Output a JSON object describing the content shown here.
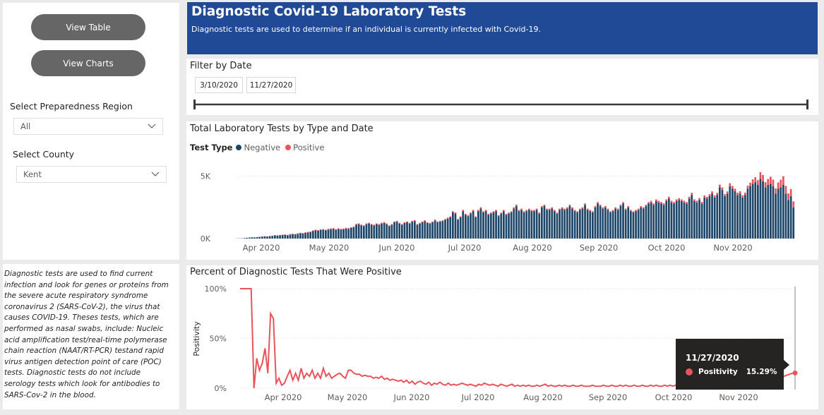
{
  "sidebar": {
    "view_table_label": "View Table",
    "view_charts_label": "View Charts",
    "region_label": "Select Preparedness Region",
    "region_value": "All",
    "county_label": "Select County",
    "county_value": "Kent",
    "description": "Diagnostic tests are used to find current infection and look for genes or proteins from the severe acute respiratory syndrome coronavirus 2 (SARS-CoV-2), the virus that causes COVID-19. Theses tests, which are performed as nasal swabs, include: Nucleic acid amplification test/real-time polymerase chain reaction (NAAT/RT-PCR) testand rapid virus antigen detection point of care (POC) tests.  Diagnostic tests do not include serology tests which look for antibodies to SARS-Cov-2 in the blood."
  },
  "header": {
    "title": "Diagnostic Covid-19 Laboratory Tests",
    "subtitle": "Diagnostic tests are used to determine if an individual is currently infected with Covid-19."
  },
  "filter": {
    "title": "Filter by Date",
    "start_date": "3/10/2020",
    "end_date": "11/27/2020",
    "slider_start": 0,
    "slider_end": 1
  },
  "colors": {
    "negative": "#1c4568",
    "positive": "#e8545c",
    "header_bg": "#214a96",
    "button_bg": "#666666"
  },
  "tooltip": {
    "date": "11/27/2020",
    "label": "Positivity",
    "value": "15.29%"
  },
  "chart_data": [
    {
      "type": "bar",
      "stacked": true,
      "title": "Total Laboratory Tests by Type and Date",
      "legend_title": "Test Type",
      "legend_position": "top-left",
      "x_range": [
        "2020-03-10",
        "2020-11-27"
      ],
      "x_ticks": [
        "Apr 2020",
        "May 2020",
        "Jun 2020",
        "Jul 2020",
        "Aug 2020",
        "Sep 2020",
        "Oct 2020",
        "Nov 2020"
      ],
      "y_ticks": [
        "0K",
        "5K"
      ],
      "ylim": [
        0,
        6000
      ],
      "series": [
        {
          "name": "Negative",
          "values": [
            10,
            15,
            20,
            40,
            60,
            80,
            100,
            90,
            110,
            130,
            150,
            170,
            160,
            190,
            210,
            250,
            230,
            260,
            280,
            300,
            260,
            320,
            350,
            330,
            380,
            420,
            400,
            450,
            480,
            520,
            600,
            650,
            620,
            680,
            700,
            650,
            720,
            750,
            780,
            700,
            760,
            720,
            740,
            800,
            780,
            850,
            900,
            1100,
            1150,
            1050,
            1000,
            1150,
            1200,
            1100,
            1050,
            1150,
            1100,
            1200,
            1250,
            1150,
            1000,
            1100,
            1300,
            1350,
            1200,
            1100,
            1250,
            1300,
            1200,
            1350,
            1400,
            1100,
            1200,
            1300,
            1400,
            1250,
            1200,
            1300,
            1450,
            1300,
            1350,
            1400,
            1500,
            1600,
            1700,
            2100,
            2000,
            1500,
            1700,
            2200,
            1900,
            1800,
            2000,
            2200,
            1700,
            2200,
            2400,
            2100,
            2200,
            1900,
            2000,
            2100,
            2200,
            1800,
            2000,
            2200,
            1900,
            2000,
            2100,
            2400,
            2600,
            2200,
            2300,
            2100,
            2200,
            2300,
            2200,
            2200,
            2300,
            2000,
            2500,
            2600,
            2300,
            2300,
            2400,
            2200,
            2000,
            2300,
            2400,
            2300,
            2400,
            2600,
            2400,
            2200,
            2100,
            2300,
            2400,
            2700,
            2300,
            2200,
            2100,
            2500,
            2800,
            2600,
            2400,
            2500,
            2300,
            2100,
            2200,
            2400,
            2300,
            2600,
            2800,
            2300,
            2500,
            2200,
            2100,
            2200,
            2300,
            2500,
            2400,
            2600,
            2800,
            2900,
            2700,
            3000,
            2900,
            2800,
            2700,
            3000,
            3200,
            2900,
            2800,
            3000,
            3100,
            3000,
            2900,
            2800,
            3200,
            3500,
            3000,
            2900,
            3100,
            2800,
            3300,
            3200,
            3400,
            3600,
            3300,
            3500,
            4100,
            3900,
            3400,
            3600,
            4200,
            4000,
            3800,
            3500,
            3600,
            3300,
            3500,
            4000,
            4200,
            4400,
            4500,
            4300,
            4800,
            4600,
            4100,
            4300,
            4400,
            4200,
            3600,
            4000,
            4100,
            4300,
            3600,
            3100,
            3400,
            2500
          ]
        },
        {
          "name": "Positive",
          "values": [
            2,
            3,
            4,
            6,
            8,
            10,
            12,
            10,
            12,
            15,
            16,
            18,
            16,
            20,
            22,
            30,
            26,
            30,
            32,
            35,
            30,
            36,
            40,
            38,
            42,
            45,
            44,
            48,
            50,
            52,
            55,
            60,
            58,
            60,
            62,
            58,
            60,
            62,
            64,
            60,
            60,
            58,
            58,
            60,
            58,
            60,
            62,
            70,
            72,
            66,
            62,
            70,
            72,
            66,
            62,
            68,
            64,
            70,
            72,
            66,
            58,
            62,
            72,
            74,
            66,
            60,
            68,
            70,
            64,
            72,
            74,
            58,
            62,
            66,
            70,
            62,
            60,
            64,
            70,
            64,
            66,
            68,
            72,
            76,
            80,
            96,
            92,
            70,
            78,
            100,
            86,
            82,
            90,
            98,
            76,
            98,
            106,
            92,
            96,
            84,
            88,
            92,
            96,
            80,
            88,
            96,
            84,
            88,
            92,
            106,
            114,
            96,
            100,
            92,
            96,
            100,
            96,
            96,
            100,
            88,
            110,
            114,
            100,
            100,
            106,
            96,
            88,
            100,
            106,
            100,
            106,
            114,
            106,
            96,
            92,
            100,
            106,
            118,
            100,
            96,
            92,
            110,
            122,
            114,
            106,
            110,
            100,
            92,
            96,
            106,
            100,
            114,
            122,
            100,
            110,
            96,
            92,
            96,
            100,
            110,
            106,
            114,
            122,
            130,
            120,
            140,
            135,
            130,
            125,
            140,
            150,
            135,
            130,
            140,
            145,
            140,
            135,
            130,
            150,
            170,
            145,
            140,
            150,
            135,
            160,
            155,
            165,
            180,
            160,
            170,
            220,
            200,
            170,
            180,
            240,
            220,
            200,
            180,
            190,
            170,
            180,
            240,
            280,
            350,
            420,
            380,
            520,
            500,
            420,
            480,
            560,
            520,
            420,
            500,
            620,
            700,
            620,
            520,
            560,
            480
          ]
        }
      ]
    },
    {
      "type": "line",
      "title": "Percent of Diagnostic Tests That Were Positive",
      "ylabel": "Positivity",
      "x_range": [
        "2020-03-10",
        "2020-11-27"
      ],
      "x_ticks": [
        "Apr 2020",
        "May 2020",
        "Jun 2020",
        "Jul 2020",
        "Aug 2020",
        "Sep 2020",
        "Oct 2020",
        "Nov 2020"
      ],
      "y_ticks": [
        "0%",
        "50%",
        "100%"
      ],
      "ylim": [
        0,
        100
      ],
      "series": [
        {
          "name": "Positivity",
          "values": [
            100,
            100,
            100,
            100,
            100,
            0,
            30,
            18,
            25,
            40,
            15,
            75,
            70,
            5,
            10,
            3,
            5,
            12,
            18,
            8,
            15,
            8,
            20,
            10,
            15,
            12,
            18,
            10,
            15,
            10,
            20,
            12,
            15,
            10,
            12,
            14,
            15,
            12,
            10,
            18,
            18,
            15,
            14,
            14,
            12,
            13,
            12,
            12,
            10,
            11,
            10,
            12,
            9,
            10,
            8,
            9,
            8,
            7,
            8,
            6,
            8,
            5,
            7,
            4,
            6,
            7,
            5,
            4,
            6,
            3,
            5,
            4,
            6,
            4,
            3,
            5,
            3,
            4,
            3,
            4,
            5,
            4,
            3,
            4,
            3,
            2,
            4,
            3,
            5,
            4,
            3,
            4,
            3,
            2,
            4,
            3,
            2,
            3,
            4,
            2,
            3,
            2,
            3,
            2,
            3,
            2,
            2,
            3,
            2,
            3,
            4,
            2,
            3,
            2,
            2,
            3,
            2,
            3,
            2,
            2,
            3,
            2,
            2,
            3,
            2,
            2,
            2,
            3,
            2,
            2,
            2,
            3,
            2,
            2,
            3,
            2,
            2,
            3,
            2,
            3,
            2,
            2,
            3,
            2,
            2,
            3,
            2,
            2,
            3,
            2,
            3,
            2,
            2,
            3,
            2,
            3,
            2,
            3,
            2,
            3,
            3,
            2,
            3,
            3,
            2,
            3,
            3,
            4,
            3,
            3,
            4,
            3,
            4,
            3,
            4,
            4,
            3,
            4,
            4,
            5,
            4,
            5,
            4,
            5,
            5,
            6,
            5,
            6,
            6,
            7,
            7,
            8,
            9,
            9,
            10,
            11,
            12,
            13,
            14,
            15,
            15.29
          ]
        }
      ]
    }
  ]
}
